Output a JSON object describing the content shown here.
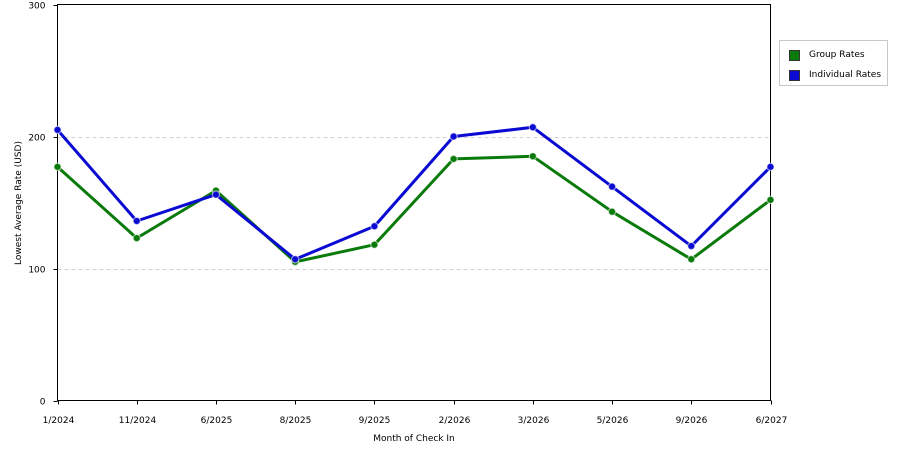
{
  "chart_data": {
    "type": "line",
    "title": "",
    "xlabel": "Month of Check In",
    "ylabel": "Lowest Average Rate (USD)",
    "categories": [
      "1/2024",
      "11/2024",
      "6/2025",
      "8/2025",
      "9/2025",
      "2/2026",
      "3/2026",
      "5/2026",
      "9/2026",
      "6/2027"
    ],
    "ylim": [
      0,
      300
    ],
    "yticks": [
      "0",
      "100",
      "200",
      "300"
    ],
    "grid": "horizontal dashed",
    "legend_position": "right",
    "series": [
      {
        "name": "Group Rates",
        "color": "#0a7a0a",
        "values": [
          177,
          123,
          159,
          105,
          118,
          183,
          185,
          143,
          107,
          152
        ]
      },
      {
        "name": "Individual Rates",
        "color": "#0a0ad2",
        "values": [
          205,
          136,
          156,
          107,
          132,
          200,
          207,
          162,
          117,
          177
        ]
      }
    ]
  }
}
